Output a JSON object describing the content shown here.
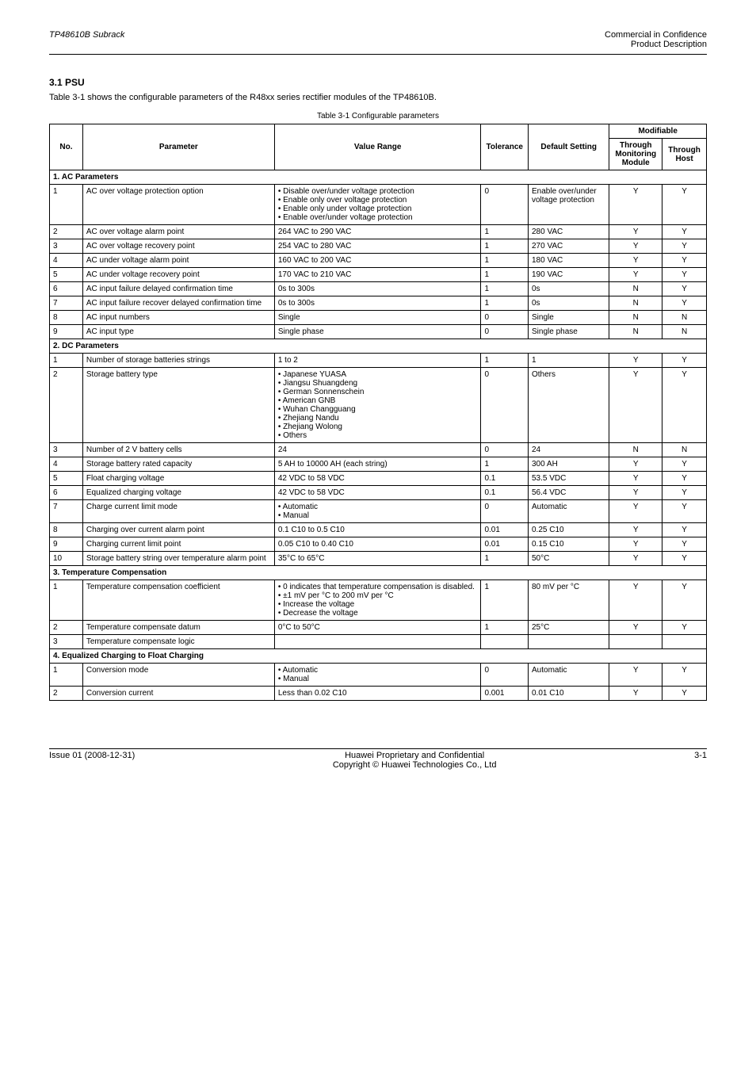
{
  "header": {
    "left": "TP48610B Subrack",
    "right_top": "Commercial in Confidence",
    "right_bottom": "Product Description"
  },
  "section": {
    "title": "3.1 PSU",
    "intro": "Table 3-1 shows the configurable parameters of the R48xx series rectifier modules of the TP48610B."
  },
  "table": {
    "caption": "Table 3-1 Configurable parameters",
    "head": {
      "no": "No.",
      "param": "Parameter",
      "value": "Value Range",
      "tol": "Tolerance",
      "default": "Default Setting",
      "modifiable": "Modifiable",
      "m1": "Through Monitoring Module",
      "m2": "Through Host"
    }
  },
  "subheads": {
    "a": "1. AC Parameters",
    "b": "2. DC Parameters"
  },
  "rows_a": [
    {
      "no": "1",
      "param": "AC over voltage protection option",
      "value": [
        "Disable over/under voltage protection",
        "Enable only over voltage protection",
        "Enable only under voltage protection",
        "Enable over/under voltage protection"
      ],
      "tol": "0",
      "default": "Enable over/under voltage protection",
      "m1": "Y",
      "m2": "Y"
    },
    {
      "no": "2",
      "param": "AC over voltage alarm point",
      "value": "264 VAC to 290 VAC",
      "tol": "1",
      "default": "280 VAC",
      "m1": "Y",
      "m2": "Y"
    },
    {
      "no": "3",
      "param": "AC over voltage recovery point",
      "value": "254 VAC to 280 VAC",
      "tol": "1",
      "default": "270 VAC",
      "m1": "Y",
      "m2": "Y"
    },
    {
      "no": "4",
      "param": "AC under voltage alarm point",
      "value": "160 VAC to 200 VAC",
      "tol": "1",
      "default": "180 VAC",
      "m1": "Y",
      "m2": "Y"
    },
    {
      "no": "5",
      "param": "AC under voltage recovery point",
      "value": "170 VAC to 210 VAC",
      "tol": "1",
      "default": "190 VAC",
      "m1": "Y",
      "m2": "Y"
    },
    {
      "no": "6",
      "param": "AC input failure delayed confirmation time",
      "value": "0s to 300s",
      "tol": "1",
      "default": "0s",
      "m1": "N",
      "m2": "Y"
    },
    {
      "no": "7",
      "param": "AC input failure recover delayed confirmation time",
      "value": "0s to 300s",
      "tol": "1",
      "default": "0s",
      "m1": "N",
      "m2": "Y"
    },
    {
      "no": "8",
      "param": "AC input numbers",
      "value": "Single",
      "tol": "0",
      "default": "Single",
      "m1": "N",
      "m2": "N"
    },
    {
      "no": "9",
      "param": "AC input type",
      "value": "Single phase",
      "tol": "0",
      "default": "Single phase",
      "m1": "N",
      "m2": "N"
    }
  ],
  "rows_b": [
    {
      "no": "1",
      "param": "Number of storage batteries strings",
      "value": "1 to 2",
      "tol": "1",
      "default": "1",
      "m1": "Y",
      "m2": "Y"
    },
    {
      "no": "2",
      "param": "Storage battery type",
      "value": [
        "Japanese YUASA",
        "Jiangsu Shuangdeng",
        "German Sonnenschein",
        "American GNB",
        "Wuhan Changguang",
        "Zhejiang Nandu",
        "Zhejiang Wolong",
        "Others"
      ],
      "tol": "0",
      "default": "Others",
      "m1": "Y",
      "m2": "Y"
    },
    {
      "no": "3",
      "param": "Number of 2 V battery cells",
      "value": "24",
      "tol": "0",
      "default": "24",
      "m1": "N",
      "m2": "N"
    },
    {
      "no": "4",
      "param": "Storage battery rated capacity",
      "value": "5 AH to 10000 AH (each string)",
      "tol": "1",
      "default": "300 AH",
      "m1": "Y",
      "m2": "Y"
    },
    {
      "no": "5",
      "param": "Float charging voltage",
      "value": "42 VDC to 58 VDC",
      "tol": "0.1",
      "default": "53.5 VDC",
      "m1": "Y",
      "m2": "Y"
    },
    {
      "no": "6",
      "param": "Equalized charging voltage",
      "value": "42 VDC to 58 VDC",
      "tol": "0.1",
      "default": "56.4 VDC",
      "m1": "Y",
      "m2": "Y"
    },
    {
      "no": "7",
      "param": "Charge current limit mode",
      "value": [
        "Automatic",
        "Manual"
      ],
      "tol": "0",
      "default": "Automatic",
      "m1": "Y",
      "m2": "Y"
    },
    {
      "no": "8",
      "param": "Charging over current alarm point",
      "value": "0.1 C10 to 0.5 C10",
      "tol": "0.01",
      "default": "0.25 C10",
      "m1": "Y",
      "m2": "Y"
    },
    {
      "no": "9",
      "param": "Charging current limit point",
      "value": "0.05 C10 to 0.40 C10",
      "tol": "0.01",
      "default": "0.15 C10",
      "m1": "Y",
      "m2": "Y"
    },
    {
      "no": "10",
      "param": "Storage battery string over temperature alarm point",
      "value": "35°C to 65°C",
      "tol": "1",
      "default": "50°C",
      "m1": "Y",
      "m2": "Y"
    }
  ],
  "subheads_b2": "3. Temperature Compensation",
  "rows_c": [
    {
      "no": "1",
      "param": "Temperature compensation coefficient",
      "value": [
        "0 indicates that temperature compensation is disabled.",
        "±1 mV per °C to 200 mV per °C",
        "Increase the voltage",
        "Decrease the voltage"
      ],
      "tol": "1",
      "default": "80 mV per °C",
      "m1": "Y",
      "m2": "Y"
    },
    {
      "no": "2",
      "param": "Temperature compensate datum",
      "value": "0°C to 50°C",
      "tol": "1",
      "default": "25°C",
      "m1": "Y",
      "m2": "Y"
    },
    {
      "no": "3",
      "param": "Temperature compensate logic",
      "value": "",
      "tol": "",
      "default": "",
      "m1": "",
      "m2": ""
    }
  ],
  "subheads_b3": "4. Equalized Charging to Float Charging",
  "rows_d": [
    {
      "no": "1",
      "param": "Conversion mode",
      "value": [
        "Automatic",
        "Manual"
      ],
      "tol": "0",
      "default": "Automatic",
      "m1": "Y",
      "m2": "Y"
    },
    {
      "no": "2",
      "param": "Conversion current",
      "value": "Less than 0.02 C10",
      "tol": "0.001",
      "default": "0.01 C10",
      "m1": "Y",
      "m2": "Y"
    }
  ],
  "footer": {
    "left": "Issue 01 (2008-12-31)",
    "center": "Huawei Proprietary and Confidential\nCopyright © Huawei Technologies Co., Ltd",
    "right": "3-1"
  }
}
